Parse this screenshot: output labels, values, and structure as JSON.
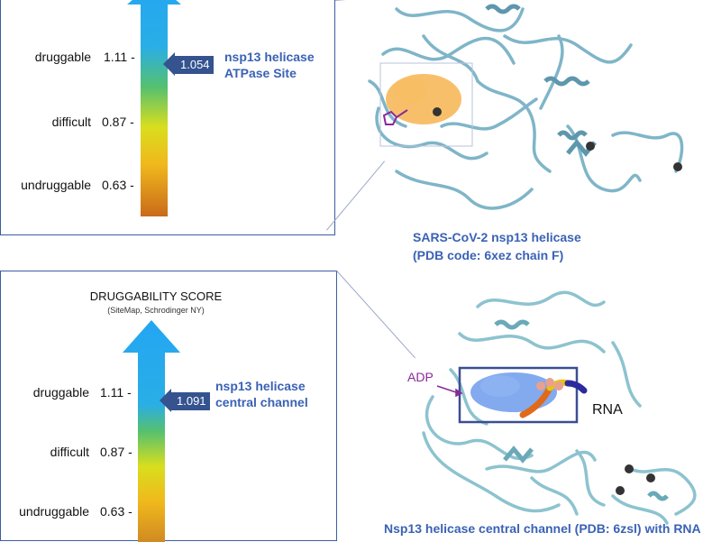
{
  "top_panel": {
    "levels": [
      {
        "label": "druggable",
        "value": "1.11 -"
      },
      {
        "label": "difficult",
        "value": "0.87 -"
      },
      {
        "label": "undruggable",
        "value": "0.63 -"
      }
    ],
    "callout_score": "1.054",
    "site_label_line1": "nsp13 helicase",
    "site_label_line2": "ATPase Site"
  },
  "top_structure": {
    "caption_line1": "SARS-CoV-2 nsp13 helicase",
    "caption_line2": "(PDB code: 6xez chain F)"
  },
  "bottom_panel": {
    "title": "DRUGGABILITY SCORE",
    "subtitle": "(SiteMap, Schrodinger NY)",
    "levels": [
      {
        "label": "druggable",
        "value": "1.11 -"
      },
      {
        "label": "difficult",
        "value": "0.87 -"
      },
      {
        "label": "undruggable",
        "value": "0.63 -"
      }
    ],
    "callout_score": "1.091",
    "site_label_line1": "nsp13 helicase",
    "site_label_line2": "central channel"
  },
  "bottom_structure": {
    "adp_label": "ADP",
    "rna_label": "RNA",
    "caption": "Nsp13 helicase central channel (PDB: 6zsl) with RNA"
  },
  "colors": {
    "frame": "#3d5da0",
    "callout": "#34538f",
    "label_blue": "#3a62b5",
    "protein": "#7fb5c8",
    "surface_orange": "#f5a93a",
    "surface_blue": "#5a8ee8",
    "adp_purple": "#8a2a9a"
  }
}
